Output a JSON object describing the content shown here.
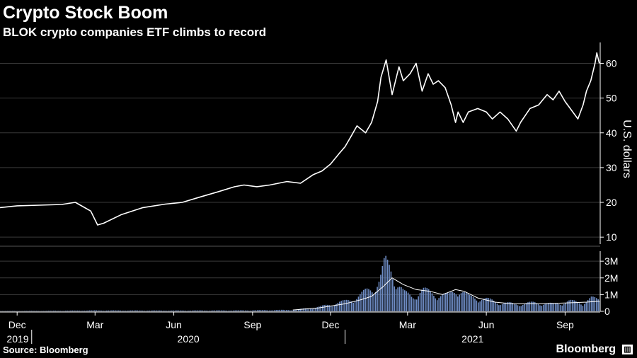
{
  "header": {
    "title": "Crypto Stock Boom",
    "subtitle": "BLOK crypto companies ETF climbs to record"
  },
  "footer": {
    "source": "Source: Bloomberg",
    "brand": "Bloomberg",
    "brand_mark_icon": "Bloomberg terminal mark"
  },
  "colors": {
    "background": "#000000",
    "price_line": "#ffffff",
    "volume_bars": "#6e8cc4",
    "volume_avg_line": "#ffffff",
    "grid": "#3a3a3a"
  },
  "chart_data": [
    {
      "type": "line",
      "ylabel": "U.S. dollars",
      "ylim": [
        8,
        66
      ],
      "yticks": [
        10,
        20,
        30,
        40,
        50,
        60
      ],
      "xlim": [
        "2019-11-25",
        "2021-10-26"
      ],
      "grid": true,
      "series": [
        {
          "x": [
            "2019-11-25",
            "2019-12-15",
            "2020-01-10",
            "2020-02-05",
            "2020-02-21",
            "2020-03-10",
            "2020-03-18",
            "2020-03-25",
            "2020-04-15",
            "2020-05-10",
            "2020-06-05",
            "2020-06-25",
            "2020-07-15",
            "2020-08-05",
            "2020-08-25",
            "2020-09-05",
            "2020-09-20",
            "2020-10-05",
            "2020-10-25",
            "2020-11-10",
            "2020-11-25",
            "2020-12-05",
            "2020-12-15",
            "2020-12-25",
            "2021-01-01",
            "2021-01-08",
            "2021-01-15",
            "2021-01-25",
            "2021-02-01",
            "2021-02-08",
            "2021-02-12",
            "2021-02-18",
            "2021-02-25",
            "2021-03-05",
            "2021-03-10",
            "2021-03-18",
            "2021-03-25",
            "2021-04-01",
            "2021-04-08",
            "2021-04-14",
            "2021-04-20",
            "2021-04-28",
            "2021-05-05",
            "2021-05-10",
            "2021-05-13",
            "2021-05-19",
            "2021-05-25",
            "2021-06-05",
            "2021-06-15",
            "2021-06-22",
            "2021-07-01",
            "2021-07-10",
            "2021-07-20",
            "2021-07-25",
            "2021-08-05",
            "2021-08-15",
            "2021-08-25",
            "2021-09-01",
            "2021-09-08",
            "2021-09-15",
            "2021-09-21",
            "2021-09-30",
            "2021-10-06",
            "2021-10-10",
            "2021-10-15",
            "2021-10-20",
            "2021-10-22",
            "2021-10-25"
          ],
          "y": [
            18.5,
            19.0,
            19.2,
            19.4,
            20.0,
            17.5,
            13.5,
            14.0,
            16.5,
            18.5,
            19.5,
            20.0,
            21.5,
            23.0,
            24.5,
            25.0,
            24.5,
            25.0,
            26.0,
            25.5,
            28.0,
            29.0,
            31.0,
            34.0,
            36.0,
            39.0,
            42.0,
            40.0,
            43.0,
            49.0,
            56.0,
            61.0,
            51.0,
            59.0,
            55.0,
            57.0,
            60.0,
            52.0,
            57.0,
            54.0,
            55.0,
            53.0,
            48.0,
            43.0,
            46.0,
            43.0,
            46.0,
            47.0,
            46.0,
            44.0,
            46.0,
            44.0,
            40.5,
            43.0,
            47.0,
            48.0,
            51.0,
            49.5,
            52.0,
            49.0,
            47.0,
            44.0,
            48.0,
            52.0,
            55.0,
            60.0,
            63.0,
            60.0
          ]
        }
      ]
    },
    {
      "type": "bar",
      "ylim": [
        0,
        3.6
      ],
      "yticks": [
        0,
        1,
        2,
        3
      ],
      "ytick_labels": [
        "0",
        "1M",
        "2M",
        "3M"
      ],
      "xlim": [
        "2019-11-25",
        "2021-10-26"
      ],
      "x_axis": {
        "month_ticks": [
          "Dec",
          "Mar",
          "Jun",
          "Sep",
          "Dec",
          "Mar",
          "Jun",
          "Sep"
        ],
        "year_labels": [
          "2019",
          "2020",
          "2021"
        ]
      },
      "series": [
        {
          "kind": "volume",
          "unit": "millions",
          "x": [
            "2019-11-25",
            "2020-01-15",
            "2020-03-15",
            "2020-06-01",
            "2020-09-01",
            "2020-11-01",
            "2020-12-01",
            "2020-12-15",
            "2021-01-01",
            "2021-01-15",
            "2021-01-25",
            "2021-02-01",
            "2021-02-10",
            "2021-02-16",
            "2021-02-22",
            "2021-03-01",
            "2021-03-10",
            "2021-03-20",
            "2021-04-01",
            "2021-04-15",
            "2021-05-01",
            "2021-05-12",
            "2021-05-25",
            "2021-06-10",
            "2021-07-01",
            "2021-07-20",
            "2021-08-10",
            "2021-09-01",
            "2021-09-20",
            "2021-10-05",
            "2021-10-15",
            "2021-10-25"
          ],
          "values": [
            0.02,
            0.03,
            0.06,
            0.05,
            0.06,
            0.1,
            0.3,
            0.5,
            0.7,
            1.0,
            1.4,
            1.6,
            2.2,
            3.4,
            3.0,
            2.2,
            1.3,
            1.0,
            1.5,
            1.2,
            1.1,
            1.6,
            1.0,
            0.9,
            0.6,
            0.5,
            0.6,
            0.5,
            0.7,
            0.6,
            0.9,
            0.8
          ]
        },
        {
          "kind": "moving-average",
          "x": [
            "2020-11-01",
            "2020-12-01",
            "2021-01-01",
            "2021-01-20",
            "2021-02-01",
            "2021-02-15",
            "2021-02-25",
            "2021-03-10",
            "2021-03-25",
            "2021-04-10",
            "2021-04-25",
            "2021-05-10",
            "2021-05-20",
            "2021-06-05",
            "2021-06-25",
            "2021-07-15",
            "2021-08-15",
            "2021-09-15",
            "2021-10-10",
            "2021-10-25"
          ],
          "values": [
            0.08,
            0.2,
            0.45,
            0.7,
            0.9,
            1.5,
            2.0,
            1.6,
            1.3,
            1.2,
            1.0,
            1.3,
            1.2,
            0.8,
            0.55,
            0.45,
            0.45,
            0.5,
            0.55,
            0.6
          ]
        }
      ]
    }
  ]
}
